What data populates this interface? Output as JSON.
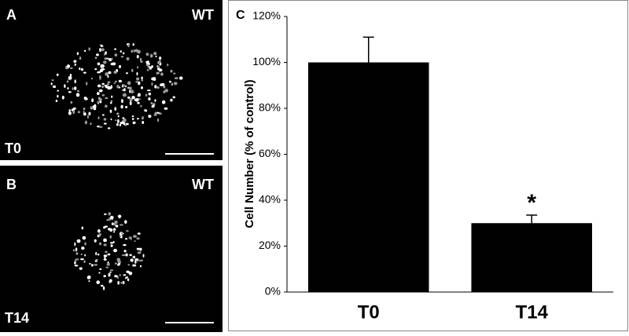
{
  "panels": [
    {
      "label": "A",
      "genotype": "WT",
      "time": "T0"
    },
    {
      "label": "B",
      "genotype": "WT",
      "time": "T14"
    }
  ],
  "chart_data": {
    "type": "bar",
    "panel_label": "C",
    "y_label": "Cell Number (% of control)",
    "categories": [
      "T0",
      "T14"
    ],
    "values": [
      100,
      30
    ],
    "errors": [
      11,
      3.5
    ],
    "significance_labels": [
      null,
      "*"
    ],
    "color": "#000000",
    "ylim": [
      0,
      120
    ],
    "yticks": [
      {
        "value": 0,
        "label": "0%"
      },
      {
        "value": 20,
        "label": "20%"
      },
      {
        "value": 40,
        "label": "40%"
      },
      {
        "value": 60,
        "label": "60%"
      },
      {
        "value": 80,
        "label": "80%"
      },
      {
        "value": 100,
        "label": "100%"
      },
      {
        "value": 120,
        "label": "120%"
      }
    ],
    "grid": false
  }
}
